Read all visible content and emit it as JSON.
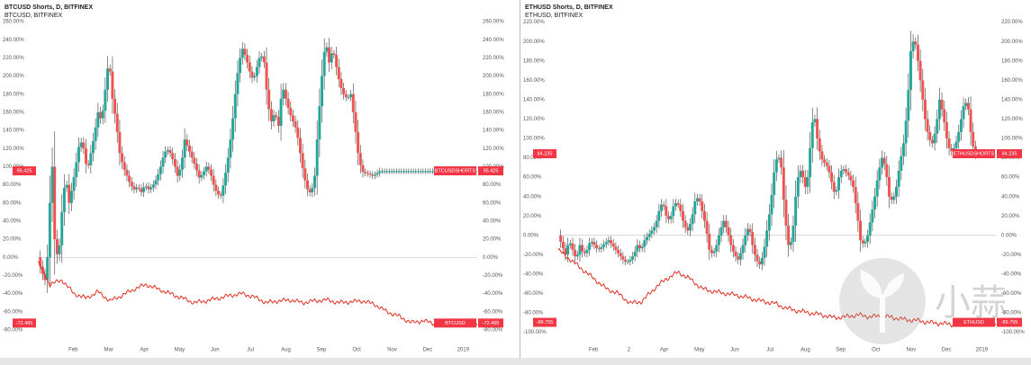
{
  "colors": {
    "up": "#26a69a",
    "down": "#ef5350",
    "wick": "#555555",
    "ratio_line": "#e03020",
    "zero_line": "#bdbdbd",
    "tag_bg": "#f23645",
    "tag_text": "#ffffff",
    "axis_text": "#555555",
    "background": "#ffffff"
  },
  "watermark": {
    "text": "小蒜",
    "icon": "sprout-logo"
  },
  "chart_data": [
    {
      "type": "candlestick",
      "title": "BTCUSD Shorts, D, BITFINEX",
      "subtitle": "BTCUSD, BITFINEX",
      "ylim": [
        -88,
        268
      ],
      "yticks": [
        -80,
        -60,
        -40,
        -20,
        0,
        20,
        40,
        60,
        80,
        100,
        120,
        140,
        160,
        180,
        200,
        220,
        240,
        260
      ],
      "ytick_labels": [
        "-80.00%",
        "-60.00%",
        "-40.00%",
        "-20.00%",
        "0.00%",
        "20.00%",
        "40.00%",
        "60.00%",
        "80.00%",
        "100.00%",
        "120.00%",
        "140.00%",
        "160.00%",
        "180.00%",
        "200.00%",
        "220.00%",
        "240.00%",
        "260.00%"
      ],
      "xticks": [
        "Feb",
        "Mar",
        "Apr",
        "May",
        "Jun",
        "Jul",
        "Aug",
        "Sep",
        "Oct",
        "Nov",
        "Dec",
        "2019"
      ],
      "grid": false,
      "zero_line": true,
      "shorts_series": {
        "name": "Shorts",
        "x": [
          0,
          3,
          6,
          8,
          10,
          12,
          14,
          17,
          20,
          23,
          26,
          29,
          32,
          35,
          38,
          41,
          44,
          47,
          50,
          53,
          56,
          59,
          62,
          65,
          68,
          71,
          74,
          77,
          80,
          83,
          86,
          89,
          92,
          95,
          98,
          101,
          104,
          107,
          110,
          113,
          116,
          119,
          122,
          125,
          128,
          131,
          134,
          137,
          140,
          143,
          146,
          149,
          152,
          155,
          158,
          161,
          164,
          167,
          170,
          173,
          176,
          179,
          182,
          185,
          188,
          191,
          194,
          197,
          200,
          203,
          206,
          209,
          212,
          215,
          218,
          221,
          224,
          227,
          230,
          233,
          236,
          239,
          242,
          245,
          248,
          251,
          254,
          257,
          260,
          263,
          266,
          269,
          272,
          275,
          278,
          281,
          284,
          287,
          290,
          293,
          296,
          299,
          302,
          305,
          308,
          311,
          314,
          317,
          320,
          323,
          326,
          329,
          332,
          335,
          338,
          341,
          344,
          347,
          350,
          353,
          354,
          355,
          357,
          359,
          361,
          363,
          365
        ],
        "values": [
          0,
          -15,
          -25,
          0,
          60,
          100,
          20,
          -5,
          50,
          90,
          60,
          80,
          105,
          130,
          120,
          95,
          115,
          135,
          160,
          150,
          185,
          220,
          175,
          150,
          115,
          100,
          90,
          80,
          75,
          78,
          72,
          80,
          75,
          78,
          85,
          95,
          110,
          120,
          115,
          105,
          90,
          100,
          130,
          120,
          110,
          100,
          88,
          92,
          100,
          95,
          80,
          70,
          68,
          85,
          110,
          140,
          180,
          215,
          230,
          220,
          205,
          195,
          210,
          225,
          215,
          170,
          150,
          160,
          145,
          190,
          175,
          160,
          150,
          140,
          115,
          90,
          75,
          70,
          90,
          150,
          200,
          240,
          215,
          230,
          210,
          190,
          180,
          175,
          180,
          150,
          115,
          95,
          93,
          92,
          90,
          92,
          95,
          95,
          95,
          95,
          95,
          95,
          95,
          95,
          95,
          95,
          95,
          95,
          95,
          95,
          95,
          95,
          95,
          95,
          95,
          95,
          95,
          95,
          95,
          95,
          95,
          95,
          95,
          95,
          95,
          95,
          95
        ],
        "last_value": 95.425,
        "last_label": "95.425",
        "tag_label": "BTCUSDSHORTS",
        "tag_value_label": "95.425"
      },
      "price_series": {
        "name": "BTCUSD",
        "x": [
          0,
          10,
          20,
          30,
          40,
          50,
          60,
          70,
          80,
          90,
          100,
          110,
          120,
          130,
          140,
          150,
          160,
          170,
          180,
          190,
          200,
          210,
          220,
          230,
          240,
          250,
          260,
          270,
          280,
          290,
          300,
          310,
          320,
          330,
          340,
          350,
          365
        ],
        "values": [
          -5,
          -30,
          -25,
          -40,
          -45,
          -38,
          -48,
          -42,
          -35,
          -30,
          -35,
          -40,
          -45,
          -50,
          -48,
          -45,
          -42,
          -40,
          -44,
          -50,
          -48,
          -47,
          -50,
          -48,
          -47,
          -50,
          -49,
          -48,
          -52,
          -60,
          -65,
          -72,
          -70,
          -73,
          -72,
          -73,
          -72
        ],
        "last_value": -72.465,
        "last_label": "-72.465",
        "tag_label": "BTCUSD",
        "tag_value_label": "-72.465"
      }
    },
    {
      "type": "candlestick",
      "title": "ETHUSD Shorts, D, BITFINEX",
      "subtitle": "ETHUSD, BITFINEX",
      "ylim": [
        -105,
        228
      ],
      "yticks": [
        -100,
        -80,
        -60,
        -40,
        -20,
        0,
        20,
        40,
        60,
        80,
        100,
        120,
        140,
        160,
        180,
        200,
        220
      ],
      "ytick_labels": [
        "-100.00%",
        "-80.00%",
        "-60.00%",
        "-40.00%",
        "-20.00%",
        "0.00%",
        "20.00%",
        "40.00%",
        "60.00%",
        "80.00%",
        "100.00%",
        "120.00%",
        "140.00%",
        "160.00%",
        "180.00%",
        "200.00%",
        "220.00%"
      ],
      "xticks": [
        "Feb",
        "2",
        "Apr",
        "May",
        "Jun",
        "Jul",
        "Aug",
        "Sep",
        "Oct",
        "Nov",
        "Dec",
        "2019"
      ],
      "grid": false,
      "zero_line": true,
      "shorts_series": {
        "name": "Shorts",
        "x": [
          0,
          3,
          6,
          9,
          12,
          15,
          18,
          21,
          24,
          27,
          30,
          33,
          36,
          39,
          42,
          45,
          48,
          51,
          54,
          57,
          60,
          63,
          66,
          69,
          72,
          75,
          78,
          81,
          84,
          87,
          90,
          93,
          96,
          99,
          102,
          105,
          108,
          111,
          114,
          117,
          120,
          123,
          126,
          129,
          132,
          135,
          138,
          141,
          144,
          147,
          150,
          153,
          156,
          159,
          162,
          165,
          168,
          171,
          174,
          177,
          180,
          183,
          186,
          189,
          192,
          195,
          198,
          201,
          204,
          207,
          210,
          213,
          216,
          219,
          222,
          225,
          228,
          231,
          234,
          237,
          240,
          243,
          246,
          249,
          252,
          255,
          258,
          261,
          264,
          267,
          270,
          273,
          276,
          279,
          282,
          285,
          288,
          291,
          294,
          297,
          300,
          303,
          306,
          309,
          312,
          315,
          318,
          321,
          324,
          327,
          330,
          333,
          336,
          339,
          342,
          345,
          348,
          351,
          354,
          357,
          360,
          363,
          365
        ],
        "values": [
          0,
          -10,
          -20,
          -5,
          -15,
          -25,
          -10,
          -20,
          -15,
          -5,
          -10,
          -15,
          -12,
          -8,
          -5,
          -10,
          -15,
          -20,
          -25,
          -28,
          -25,
          -20,
          -10,
          -15,
          -5,
          0,
          5,
          10,
          25,
          35,
          20,
          15,
          30,
          35,
          25,
          10,
          5,
          15,
          35,
          40,
          25,
          10,
          -15,
          -20,
          -10,
          5,
          15,
          5,
          -10,
          -20,
          -25,
          -15,
          0,
          10,
          -10,
          -25,
          -30,
          -20,
          5,
          30,
          65,
          85,
          70,
          20,
          -10,
          -5,
          40,
          70,
          60,
          45,
          90,
          130,
          100,
          80,
          75,
          70,
          55,
          40,
          60,
          70,
          65,
          60,
          50,
          25,
          -5,
          -10,
          0,
          20,
          40,
          65,
          80,
          70,
          40,
          35,
          50,
          75,
          95,
          130,
          190,
          205,
          180,
          150,
          120,
          100,
          95,
          110,
          140,
          125,
          100,
          85,
          90,
          100,
          120,
          140,
          130,
          95,
          85,
          84,
          84,
          84,
          84,
          84,
          84
        ],
        "last_value": 84.235,
        "last_label": "84.235",
        "tag_label": "ETHUSDSHORTS",
        "tag_value_label": "84.235"
      },
      "price_series": {
        "name": "ETHUSD",
        "x": [
          0,
          10,
          20,
          30,
          40,
          50,
          60,
          70,
          80,
          90,
          100,
          110,
          120,
          130,
          140,
          150,
          160,
          170,
          180,
          190,
          200,
          210,
          220,
          230,
          240,
          250,
          260,
          270,
          280,
          290,
          300,
          310,
          320,
          330,
          340,
          350,
          365
        ],
        "values": [
          -15,
          -25,
          -35,
          -45,
          -55,
          -60,
          -70,
          -68,
          -55,
          -45,
          -38,
          -45,
          -55,
          -58,
          -60,
          -62,
          -65,
          -68,
          -70,
          -75,
          -78,
          -80,
          -82,
          -85,
          -84,
          -82,
          -84,
          -83,
          -85,
          -87,
          -88,
          -90,
          -91,
          -92,
          -90,
          -89,
          -89.75
        ],
        "last_value": -89.755,
        "last_label": "-89.755",
        "tag_label": "ETHUSD",
        "tag_value_label": "-89.755"
      }
    }
  ]
}
